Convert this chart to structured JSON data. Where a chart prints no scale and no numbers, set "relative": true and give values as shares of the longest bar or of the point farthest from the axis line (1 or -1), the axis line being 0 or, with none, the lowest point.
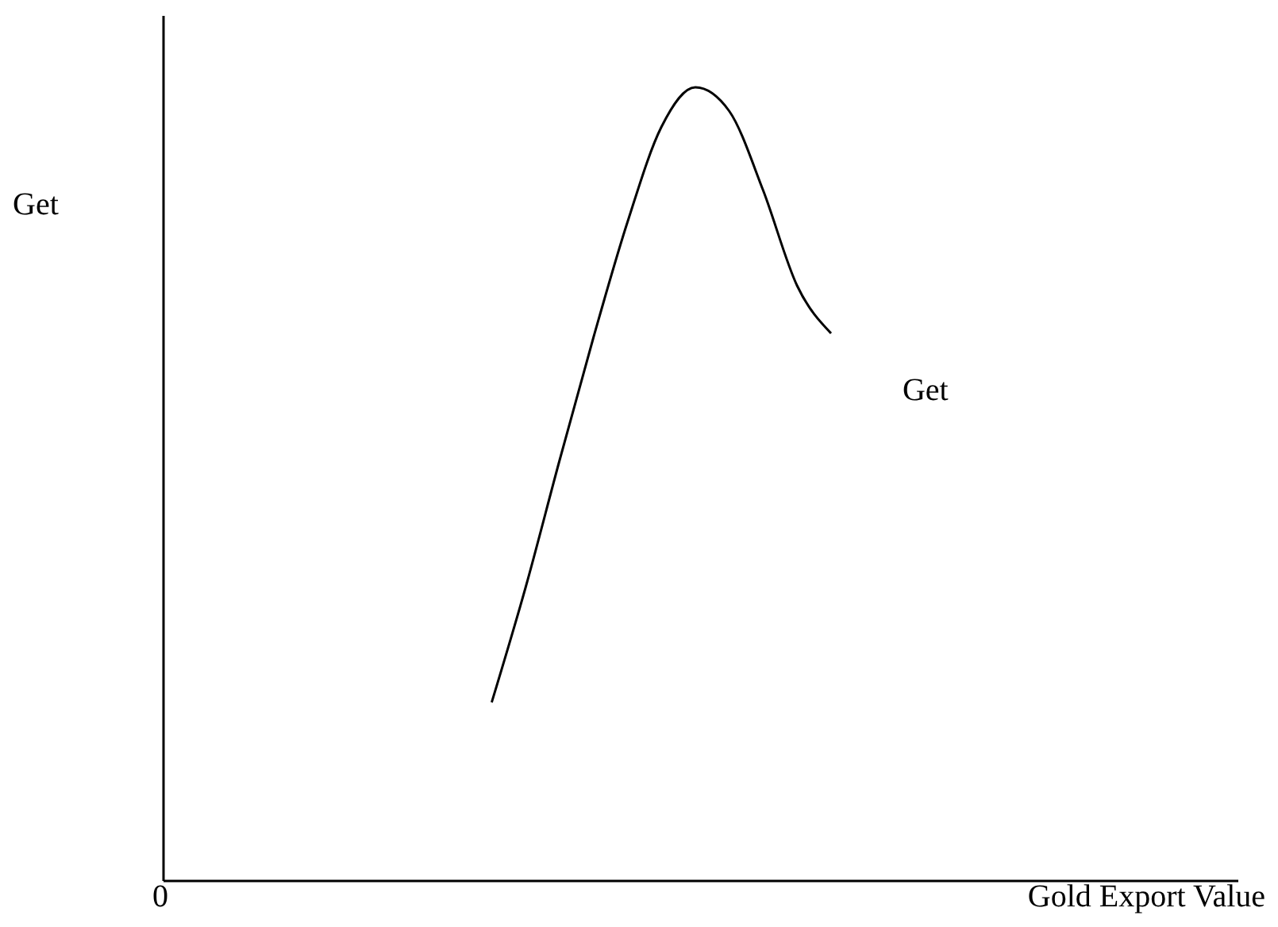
{
  "chart_data": {
    "type": "line",
    "relative": true,
    "xlabel": "Gold Export Value",
    "annotations": [
      "Get",
      "0"
    ],
    "categories": [
      null,
      null,
      null,
      null,
      null,
      null,
      null,
      null,
      null,
      null,
      null,
      null,
      null,
      null,
      null,
      null,
      null,
      null,
      null,
      null,
      null,
      null,
      null,
      null,
      null,
      null,
      null,
      null
    ],
    "series": [
      {
        "name": "Get",
        "color": "#000000",
        "values": [
          null,
          null,
          null,
          null,
          null,
          0.225,
          0.37,
          0.53,
          0.685,
          0.83,
          0.95,
          1.0,
          0.97,
          0.87,
          0.75,
          0.69,
          null,
          null,
          null,
          null,
          null,
          null,
          null,
          null,
          null,
          null,
          null,
          null
        ]
      }
    ],
    "marker": "none",
    "line_style": "solid",
    "grid": false,
    "legend": false
  }
}
